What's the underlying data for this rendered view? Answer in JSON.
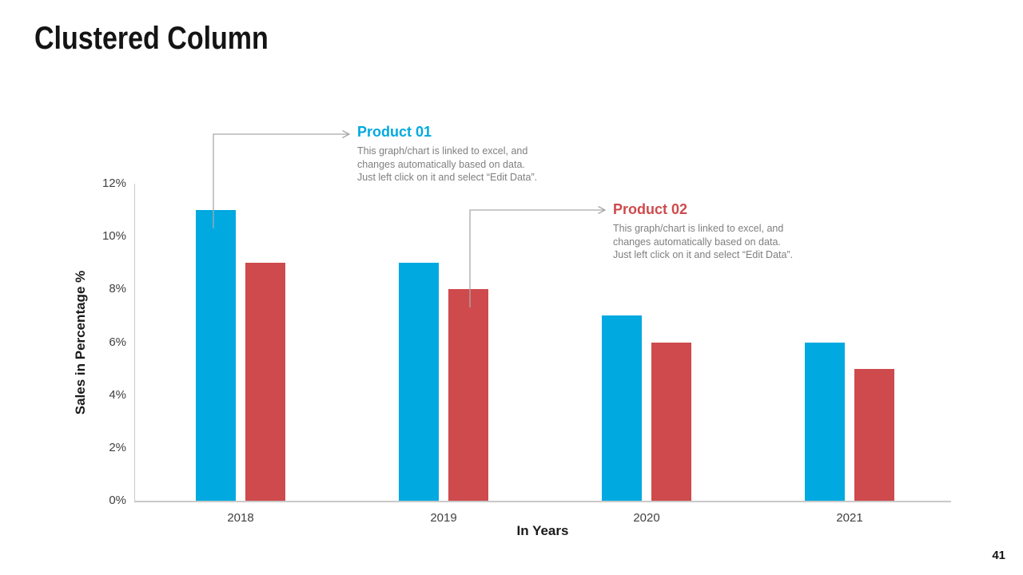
{
  "slide": {
    "title": "Clustered Column",
    "page_number": "41"
  },
  "annotations": {
    "product01": {
      "heading": "Product 01",
      "body": "This graph/chart is linked to excel, and\nchanges automatically based on data.\nJust left click on it and select “Edit Data”."
    },
    "product02": {
      "heading": "Product 02",
      "body": "This graph/chart is linked to excel, and\nchanges automatically based on data.\nJust left click on it and select “Edit Data”."
    }
  },
  "colors": {
    "product01": "#00A9E0",
    "product02": "#CE4A4C",
    "connector": "#A9A9A9",
    "axis_line": "#C9C9C9",
    "tick_text": "#404040",
    "body_text": "#7F7F7F"
  },
  "chart_data": {
    "type": "bar",
    "title": "Clustered Column",
    "categories": [
      "2018",
      "2019",
      "2020",
      "2021"
    ],
    "series": [
      {
        "name": "Product 01",
        "color": "#00A9E0",
        "values": [
          11,
          9,
          7,
          6
        ]
      },
      {
        "name": "Product 02",
        "color": "#CE4A4C",
        "values": [
          9,
          8,
          6,
          5
        ]
      }
    ],
    "xlabel": "In Years",
    "ylabel": "Sales in Percentage %",
    "ylim": [
      0,
      12
    ],
    "ytick_step": 2,
    "ytick_suffix": "%",
    "grid": false,
    "legend": "none"
  }
}
